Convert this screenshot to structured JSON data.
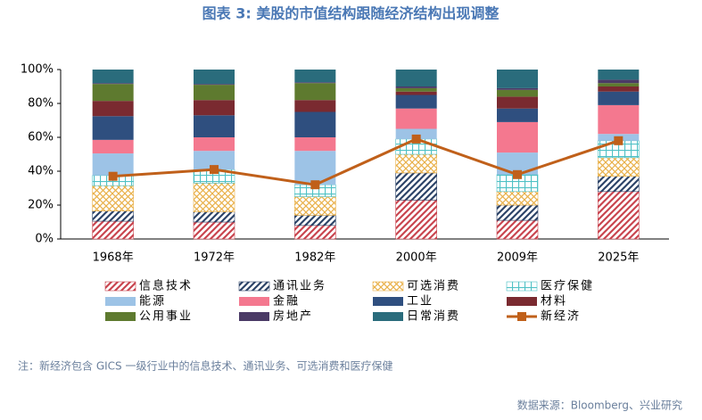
{
  "chart_data": {
    "type": "bar",
    "stacked": true,
    "title": "图表 3:  美股的市值结构跟随经济结构出现调整",
    "note": "注：新经济包含 GICS 一级行业中的信息技术、通讯业务、可选消费和医疗保健",
    "source": "数据来源：Bloomberg、兴业研究",
    "categories": [
      "1968年",
      "1972年",
      "1982年",
      "2000年",
      "2009年",
      "2025年"
    ],
    "ylim": [
      0,
      100
    ],
    "yticks": [
      {
        "value": 0,
        "label": "0%"
      },
      {
        "value": 20,
        "label": "20%"
      },
      {
        "value": 40,
        "label": "40%"
      },
      {
        "value": 60,
        "label": "60%"
      },
      {
        "value": 80,
        "label": "80%"
      },
      {
        "value": 100,
        "label": "100%"
      }
    ],
    "series": [
      {
        "name": "信息技术",
        "color": "#c9454f",
        "pattern": "diagonal",
        "values": [
          10.5,
          10,
          8,
          23,
          11,
          28
        ]
      },
      {
        "name": "通讯业务",
        "color": "#2d4468",
        "pattern": "diagonal",
        "values": [
          6,
          6,
          6,
          16,
          9,
          9
        ]
      },
      {
        "name": "可选消费",
        "color": "#e9b049",
        "pattern": "cross",
        "values": [
          15,
          17,
          11,
          11,
          8,
          11
        ]
      },
      {
        "name": "医疗保健",
        "color": "#4fc1c5",
        "pattern": "grid",
        "values": [
          6,
          8,
          7,
          9,
          10,
          10
        ]
      },
      {
        "name": "能源",
        "color": "#9dc3e6",
        "values": [
          13,
          11,
          20,
          6,
          13,
          4
        ]
      },
      {
        "name": "金融",
        "color": "#f4788f",
        "values": [
          8,
          8,
          8,
          12,
          18,
          17
        ]
      },
      {
        "name": "工业",
        "color": "#2f4f7f",
        "values": [
          14,
          13,
          15,
          8,
          8,
          8
        ]
      },
      {
        "name": "材料",
        "color": "#7a2a30",
        "values": [
          9,
          9,
          7,
          2,
          7,
          3
        ]
      },
      {
        "name": "公用事业",
        "color": "#5e7a2f",
        "values": [
          10,
          9,
          10,
          2,
          4,
          2
        ]
      },
      {
        "name": "房地产",
        "color": "#4a3a66",
        "values": [
          0.5,
          0.5,
          0.5,
          1,
          1,
          2
        ]
      },
      {
        "name": "日常消费",
        "color": "#2a6c7c",
        "values": [
          8,
          8.5,
          7.5,
          10,
          11,
          6
        ]
      },
      {
        "name": "新经济",
        "color": "#c0601a",
        "type": "line",
        "values": [
          37,
          41,
          32,
          59,
          38,
          58
        ]
      }
    ]
  }
}
